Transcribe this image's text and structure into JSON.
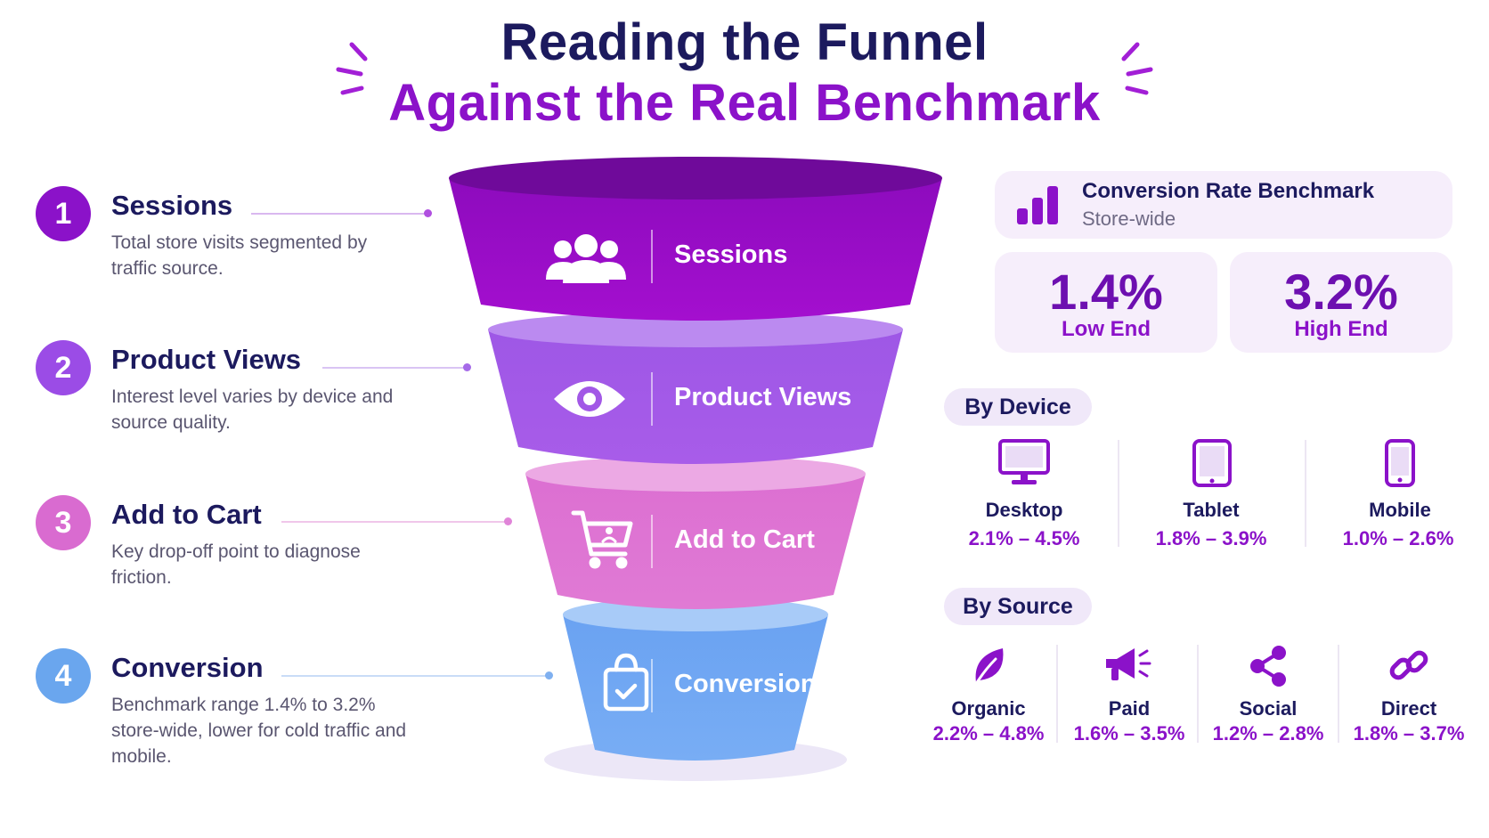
{
  "title": {
    "line1": "Reading the Funnel",
    "line2": "Against the Real Benchmark"
  },
  "steps": [
    {
      "number": "1",
      "title": "Sessions",
      "description": "Total store visits segmented by traffic source.",
      "color": "#8b12c9"
    },
    {
      "number": "2",
      "title": "Product Views",
      "description": "Interest level varies by device and source quality.",
      "color": "#9b4ce6"
    },
    {
      "number": "3",
      "title": "Add to Cart",
      "description": "Key drop-off point to diagnose friction.",
      "color": "#d96bd0"
    },
    {
      "number": "4",
      "title": "Conversion",
      "description": "Benchmark range 1.4% to 3.2% store-wide, lower for cold traffic and mobile.",
      "color": "#6aa6ee"
    }
  ],
  "funnel": {
    "stages": [
      {
        "label": "Sessions",
        "icon": "users-icon",
        "color": "#9b0ec4"
      },
      {
        "label": "Product Views",
        "icon": "eye-icon",
        "color": "#a258e6"
      },
      {
        "label": "Add to Cart",
        "icon": "shopping-cart-icon",
        "color": "#dd72cf"
      },
      {
        "label": "Conversion",
        "icon": "shopping-bag-icon",
        "color": "#6ea5f2"
      }
    ]
  },
  "benchmark": {
    "icon": "bar-chart-icon",
    "title": "Conversion Rate Benchmark",
    "subtitle": "Store-wide",
    "low": {
      "value": "1.4%",
      "label": "Low End"
    },
    "high": {
      "value": "3.2%",
      "label": "High End"
    }
  },
  "by_device": {
    "heading": "By Device",
    "items": [
      {
        "name": "Desktop",
        "range": "2.1% – 4.5%",
        "icon": "desktop-icon"
      },
      {
        "name": "Tablet",
        "range": "1.8% – 3.9%",
        "icon": "tablet-icon"
      },
      {
        "name": "Mobile",
        "range": "1.0% – 2.6%",
        "icon": "mobile-icon"
      }
    ]
  },
  "by_source": {
    "heading": "By Source",
    "items": [
      {
        "name": "Organic",
        "range": "2.2% – 4.8%",
        "icon": "leaf-icon"
      },
      {
        "name": "Paid",
        "range": "1.6% – 3.5%",
        "icon": "megaphone-icon"
      },
      {
        "name": "Social",
        "range": "1.2% – 2.8%",
        "icon": "share-icon"
      },
      {
        "name": "Direct",
        "range": "1.8% – 3.7%",
        "icon": "link-icon"
      }
    ]
  },
  "colors": {
    "title_dark": "#1c1a5e",
    "title_accent": "#8b12c9",
    "card_bg": "#f6eefb"
  }
}
